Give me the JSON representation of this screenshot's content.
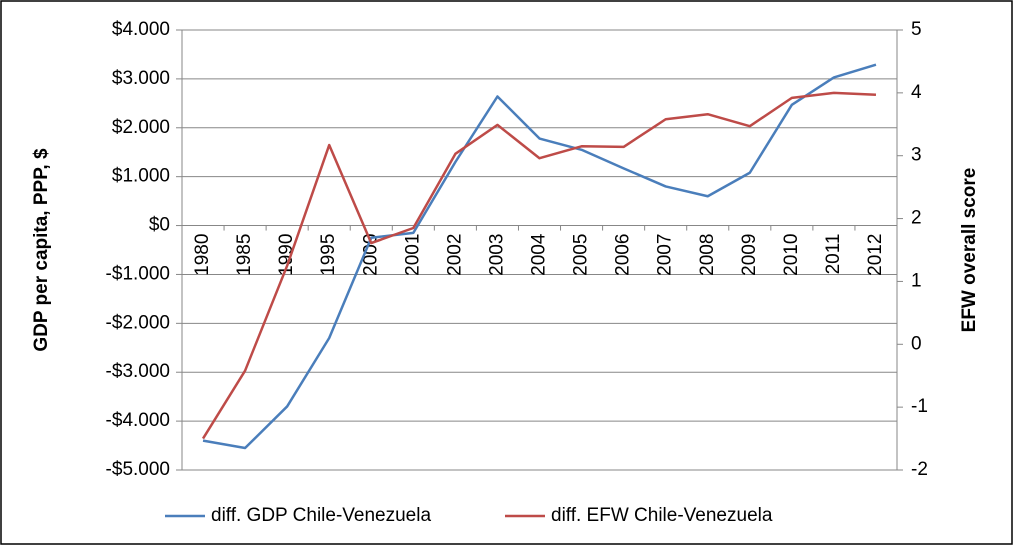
{
  "chart_data": {
    "type": "line",
    "y_label": "GDP per capita, PPP, $",
    "y2_label": "EFW overall score",
    "categories": [
      "1980",
      "1985",
      "1990",
      "1995",
      "2000",
      "2001",
      "2002",
      "2003",
      "2004",
      "2005",
      "2006",
      "2007",
      "2008",
      "2009",
      "2010",
      "2011",
      "2012"
    ],
    "series": [
      {
        "name": "diff. GDP Chile-Venezuela",
        "color": "#4a7ebb",
        "axis": "y",
        "values": [
          -4400,
          -4550,
          -3700,
          -2300,
          -250,
          -150,
          1300,
          2640,
          1780,
          1550,
          1170,
          800,
          600,
          1080,
          2470,
          3030,
          3290
        ]
      },
      {
        "name": "diff. EFW Chile-Venezuela",
        "color": "#be4b48",
        "axis": "y2",
        "values": [
          -1.5,
          -0.42,
          1.25,
          3.17,
          1.61,
          1.85,
          3.03,
          3.49,
          2.96,
          3.15,
          3.14,
          3.58,
          3.66,
          3.47,
          3.92,
          4.0,
          3.97
        ]
      }
    ],
    "ylim": [
      -5000,
      4000
    ],
    "yticks": [
      {
        "value": -5000,
        "label": "-$5.000"
      },
      {
        "value": -4000,
        "label": "-$4.000"
      },
      {
        "value": -3000,
        "label": "-$3.000"
      },
      {
        "value": -2000,
        "label": "-$2.000"
      },
      {
        "value": -1000,
        "label": "-$1.000"
      },
      {
        "value": 0,
        "label": "$0"
      },
      {
        "value": 1000,
        "label": "$1.000"
      },
      {
        "value": 2000,
        "label": "$2.000"
      },
      {
        "value": 3000,
        "label": "$3.000"
      },
      {
        "value": 4000,
        "label": "$4.000"
      }
    ],
    "y2lim": [
      -2,
      5
    ],
    "y2ticks": [
      -2,
      -1,
      0,
      1,
      2,
      3,
      4,
      5
    ],
    "grid": true,
    "legend": "bottom"
  }
}
